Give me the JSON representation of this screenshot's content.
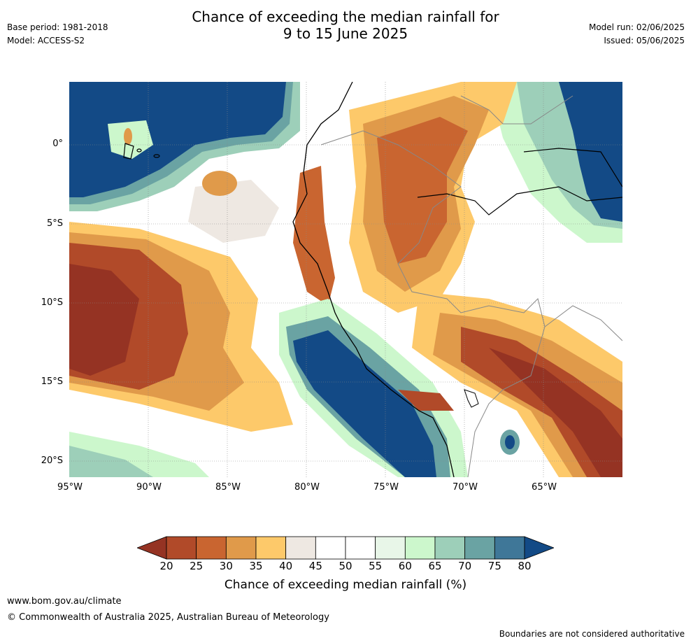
{
  "title": {
    "line1": "Chance of exceeding the median rainfall for",
    "line2": "9 to 15 June 2025"
  },
  "meta_left": {
    "base_period": "Base period: 1981-2018",
    "model": "Model: ACCESS-S2"
  },
  "meta_right": {
    "model_run": "Model run: 02/06/2025",
    "issued": "Issued: 05/06/2025"
  },
  "map": {
    "lat_labels": [
      "0°",
      "5°S",
      "10°S",
      "15°S",
      "20°S"
    ],
    "lon_labels": [
      "95°W",
      "90°W",
      "85°W",
      "80°W",
      "75°W",
      "70°W",
      "65°W"
    ],
    "colors": {
      "very_dry": "#953323",
      "dry": "#b9502c",
      "mid_dry": "#c96530",
      "light_dry": "#e09a4a",
      "pale_dry": "#fdc96a",
      "neutral": "#eee8e2",
      "white": "#ffffff",
      "pale_wet": "#e8f6e8",
      "light_wet": "#ccf7cc",
      "mid_wet": "#9dcfb9",
      "wet": "#6aa3a3",
      "very_wet": "#3f7798",
      "extreme_wet": "#134a86"
    }
  },
  "colorbar": {
    "ticks": [
      "20",
      "25",
      "30",
      "35",
      "40",
      "45",
      "50",
      "55",
      "60",
      "65",
      "70",
      "75",
      "80"
    ],
    "colors": [
      "#953323",
      "#b14a29",
      "#c96530",
      "#e09a4a",
      "#fdc96a",
      "#eee8e2",
      "#ffffff",
      "#ffffff",
      "#e8f6e8",
      "#ccf7cc",
      "#9dcfb9",
      "#6aa3a3",
      "#3f7798",
      "#134a86"
    ],
    "label": "Chance of exceeding median rainfall (%)"
  },
  "footer": {
    "url": "www.bom.gov.au/climate",
    "copyright": "© Commonwealth of Australia 2025, Australian Bureau of Meteorology",
    "disclaimer": "Boundaries are not considered authoritative"
  }
}
